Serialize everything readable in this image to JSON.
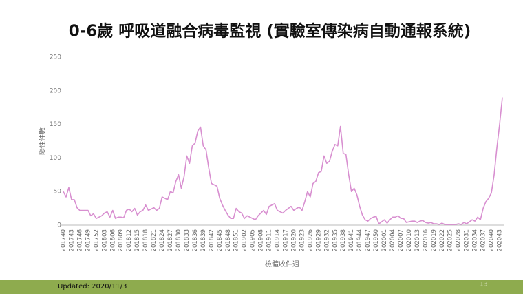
{
  "chart_data": {
    "type": "line",
    "title": "0-6歲 呼吸道融合病毒監視 (實驗室傳染病自動通報系統)",
    "x_label": "檢體收件週",
    "y_label": "陽性件數",
    "color": "#d88fd0",
    "ylim": [
      0,
      250
    ],
    "yticks": [
      0,
      50,
      100,
      150,
      200,
      250
    ],
    "grid": false,
    "categories": [
      "201740",
      null,
      null,
      "201743",
      null,
      null,
      "201746",
      null,
      null,
      "201749",
      null,
      null,
      "201752",
      null,
      null,
      "201803",
      null,
      null,
      "201806",
      null,
      null,
      "201809",
      null,
      null,
      "201812",
      null,
      null,
      "201815",
      null,
      null,
      "201818",
      null,
      null,
      "201821",
      null,
      null,
      "201824",
      null,
      null,
      "201827",
      null,
      null,
      "201830",
      null,
      null,
      "201833",
      null,
      null,
      "201836",
      null,
      null,
      "201839",
      null,
      null,
      "201842",
      null,
      null,
      "201845",
      null,
      null,
      "201848",
      null,
      null,
      "201851",
      null,
      null,
      "201902",
      null,
      null,
      "201905",
      null,
      null,
      "201908",
      null,
      null,
      "201911",
      null,
      null,
      "201914",
      null,
      null,
      "201917",
      null,
      null,
      "201920",
      null,
      null,
      "201923",
      null,
      null,
      "201926",
      null,
      null,
      "201929",
      null,
      null,
      "201932",
      null,
      null,
      "201935",
      null,
      null,
      "201938",
      null,
      null,
      "201941",
      null,
      null,
      "201944",
      null,
      null,
      "201947",
      null,
      null,
      "201950",
      null,
      null,
      "202001",
      null,
      null,
      "202004",
      null,
      null,
      "202007",
      null,
      null,
      "202010",
      null,
      null,
      "202013",
      null,
      null,
      "202016",
      null,
      null,
      "202019",
      null,
      null,
      "202022",
      null,
      null,
      "202025",
      null,
      null,
      "202028",
      null,
      null,
      "202031",
      null,
      null,
      "202034",
      null,
      null,
      "202037",
      null,
      null,
      "202040",
      null,
      null,
      "202043",
      null
    ],
    "values": [
      50,
      42,
      56,
      38,
      38,
      26,
      22,
      22,
      22,
      22,
      14,
      17,
      10,
      12,
      14,
      18,
      20,
      12,
      22,
      10,
      12,
      12,
      11,
      22,
      24,
      20,
      25,
      15,
      20,
      22,
      30,
      22,
      24,
      26,
      22,
      25,
      42,
      40,
      38,
      50,
      48,
      65,
      75,
      55,
      72,
      103,
      92,
      118,
      122,
      140,
      146,
      118,
      112,
      85,
      62,
      60,
      58,
      40,
      30,
      22,
      15,
      10,
      10,
      25,
      20,
      18,
      10,
      14,
      12,
      10,
      8,
      14,
      18,
      22,
      16,
      28,
      30,
      32,
      22,
      20,
      18,
      22,
      25,
      28,
      22,
      25,
      27,
      22,
      35,
      50,
      42,
      62,
      65,
      78,
      80,
      103,
      92,
      95,
      110,
      120,
      118,
      147,
      107,
      105,
      75,
      50,
      55,
      45,
      28,
      15,
      8,
      6,
      10,
      12,
      13,
      2,
      5,
      8,
      3,
      8,
      12,
      12,
      14,
      10,
      10,
      4,
      5,
      6,
      6,
      4,
      6,
      7,
      4,
      3,
      4,
      2,
      2,
      1,
      3,
      1,
      1,
      1,
      1,
      1,
      2,
      1,
      4,
      2,
      5,
      8,
      6,
      12,
      8,
      25,
      35,
      40,
      48,
      75,
      115,
      150,
      190
    ]
  },
  "footer": {
    "updated": "Updated: 2020/11/3",
    "page": "13"
  }
}
